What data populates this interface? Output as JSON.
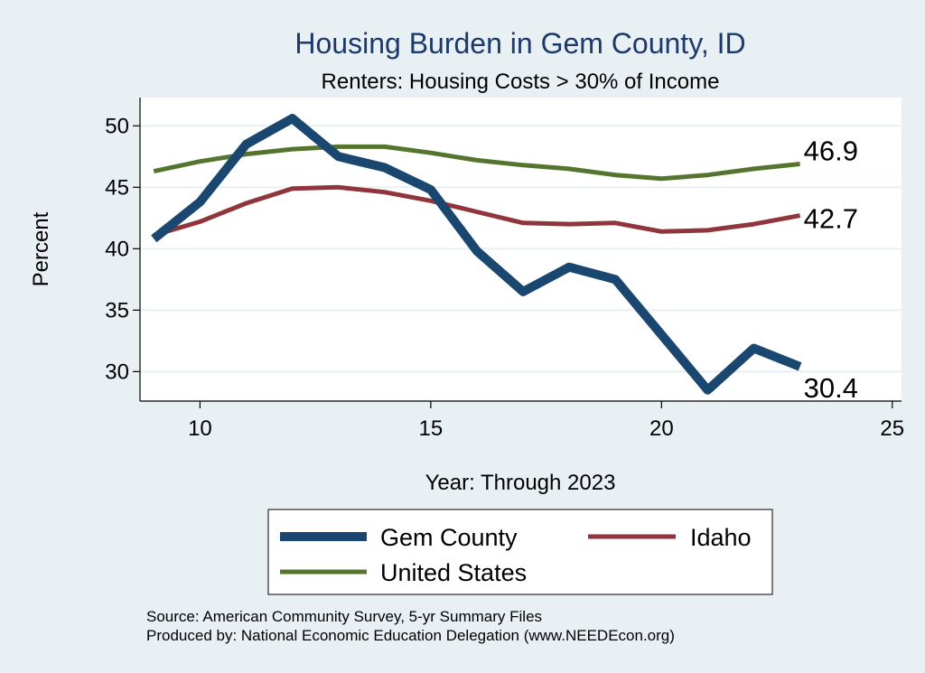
{
  "chart_data": {
    "type": "line",
    "title": "Housing Burden in Gem County, ID",
    "subtitle": "Renters: Housing Costs > 30% of Income",
    "xlabel": "Year: Through 2023",
    "ylabel": "Percent",
    "xlim": [
      8.7,
      25.2
    ],
    "ylim": [
      27.6,
      52.3
    ],
    "xticks": [
      10,
      15,
      20,
      25
    ],
    "yticks": [
      30,
      35,
      40,
      45,
      50
    ],
    "grid": true,
    "x": [
      9,
      10,
      11,
      12,
      13,
      14,
      15,
      16,
      17,
      18,
      19,
      20,
      21,
      22,
      23
    ],
    "series": [
      {
        "name": "Gem County",
        "color": "#1a476f",
        "values": [
          40.8,
          43.8,
          48.5,
          50.6,
          47.5,
          46.6,
          44.8,
          39.8,
          36.5,
          38.5,
          37.5,
          33.0,
          28.5,
          31.9,
          30.4
        ],
        "end_label": "30.4"
      },
      {
        "name": "Idaho",
        "color": "#90353b",
        "values": [
          41.1,
          42.2,
          43.7,
          44.9,
          45.0,
          44.6,
          43.9,
          43.0,
          42.1,
          42.0,
          42.1,
          41.4,
          41.5,
          42.0,
          42.7
        ],
        "end_label": "42.7"
      },
      {
        "name": "United States",
        "color": "#55752f",
        "values": [
          46.3,
          47.1,
          47.7,
          48.1,
          48.3,
          48.3,
          47.8,
          47.2,
          46.8,
          46.5,
          46.0,
          45.7,
          46.0,
          46.5,
          46.9
        ],
        "end_label": "46.9"
      }
    ],
    "legend": {
      "placement": "bottom",
      "entries": [
        "Gem County",
        "Idaho",
        "United States"
      ]
    },
    "notes": [
      "Source: American Community Survey, 5-yr Summary Files",
      "Produced by: National Economic Education Delegation (www.NEEDEcon.org)"
    ]
  },
  "colors": {
    "page_background": "#e9f0f3",
    "plot_background": "#ffffff",
    "grid": "#e9f0f3",
    "title": "#1b3a6b"
  }
}
